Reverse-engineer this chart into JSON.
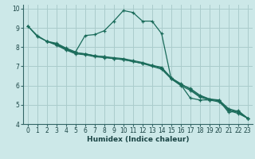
{
  "title": "",
  "xlabel": "Humidex (Indice chaleur)",
  "xlim": [
    -0.5,
    23.5
  ],
  "ylim": [
    4,
    10.2
  ],
  "xticks": [
    0,
    1,
    2,
    3,
    4,
    5,
    6,
    7,
    8,
    9,
    10,
    11,
    12,
    13,
    14,
    15,
    16,
    17,
    18,
    19,
    20,
    21,
    22,
    23
  ],
  "yticks": [
    4,
    5,
    6,
    7,
    8,
    9,
    10
  ],
  "bg_color": "#cce8e8",
  "grid_color": "#aacccc",
  "line_color": "#1a6b5a",
  "line1_x": [
    0,
    1,
    2,
    3,
    4,
    5,
    6,
    7,
    8,
    9,
    10,
    11,
    12,
    13,
    14,
    15,
    16,
    17,
    18,
    19,
    20,
    21,
    22,
    23
  ],
  "line1_y": [
    9.1,
    8.6,
    8.3,
    8.2,
    7.95,
    7.75,
    8.6,
    8.65,
    8.85,
    9.35,
    9.9,
    9.8,
    9.35,
    9.35,
    8.7,
    6.35,
    6.05,
    5.35,
    5.25,
    5.25,
    5.25,
    4.6,
    4.7,
    4.3
  ],
  "line2_x": [
    0,
    1,
    2,
    3,
    4,
    5,
    6,
    7,
    8,
    9,
    10,
    11,
    12,
    13,
    14,
    15,
    16,
    17,
    18,
    19,
    20,
    21,
    22,
    23
  ],
  "line2_y": [
    9.1,
    8.55,
    8.3,
    8.15,
    7.9,
    7.7,
    7.65,
    7.55,
    7.5,
    7.4,
    7.35,
    7.25,
    7.15,
    7.05,
    6.95,
    6.4,
    6.05,
    5.85,
    5.5,
    5.3,
    5.25,
    4.8,
    4.65,
    4.3
  ],
  "line3_x": [
    2,
    3,
    4,
    5,
    6,
    7,
    8,
    9,
    10,
    11,
    12,
    13,
    14,
    15,
    16,
    17,
    18,
    19,
    20,
    21,
    22,
    23
  ],
  "line3_y": [
    8.3,
    8.15,
    7.9,
    7.7,
    7.65,
    7.55,
    7.5,
    7.45,
    7.4,
    7.3,
    7.2,
    7.05,
    6.9,
    6.4,
    6.1,
    5.8,
    5.45,
    5.3,
    5.2,
    4.75,
    4.6,
    4.3
  ],
  "line4_x": [
    2,
    3,
    4,
    5,
    6,
    7,
    8,
    9,
    10,
    11,
    12,
    13,
    14,
    15,
    16,
    17,
    18,
    19,
    20,
    21,
    22,
    23
  ],
  "line4_y": [
    8.3,
    8.1,
    7.85,
    7.65,
    7.6,
    7.5,
    7.45,
    7.4,
    7.35,
    7.25,
    7.15,
    7.0,
    6.85,
    6.35,
    6.0,
    5.75,
    5.4,
    5.25,
    5.15,
    4.7,
    4.55,
    4.3
  ]
}
